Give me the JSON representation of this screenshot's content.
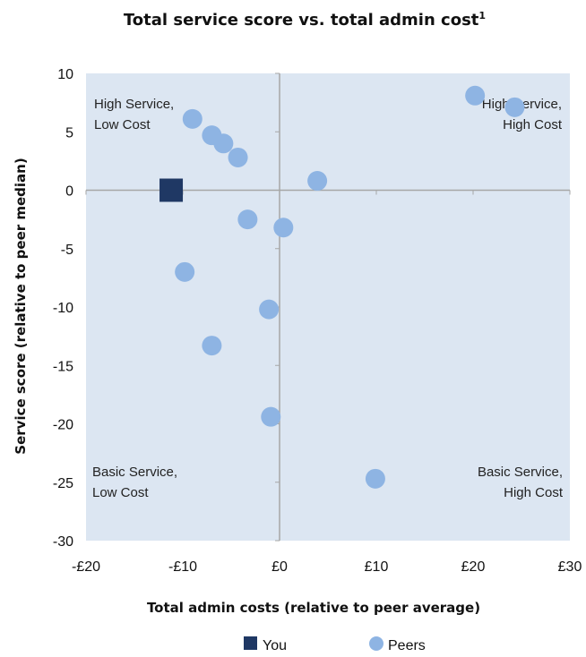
{
  "chart_data": {
    "type": "scatter",
    "title": "Total service score vs. total admin cost",
    "title_superscript": "1",
    "xlabel": "Total admin costs (relative to peer average)",
    "ylabel": "Service score (relative to peer median)",
    "xlim": [
      -20,
      30
    ],
    "ylim": [
      -30,
      10
    ],
    "x_ticks": [
      -20,
      -10,
      0,
      10,
      20,
      30
    ],
    "x_tick_labels": [
      "-£20",
      "-£10",
      "£0",
      "£10",
      "£20",
      "£30"
    ],
    "y_ticks": [
      10,
      5,
      0,
      -5,
      -10,
      -15,
      -20,
      -25,
      -30
    ],
    "y_tick_labels": [
      "10",
      "5",
      "0",
      "-5",
      "-10",
      "-15",
      "-20",
      "-25",
      "-30"
    ],
    "grid": false,
    "legend_position": "bottom-center",
    "plot_background": "#dce6f2",
    "series": [
      {
        "name": "You",
        "marker": "square",
        "color": "#1f3864",
        "points": [
          {
            "x": -11.2,
            "y": 0
          }
        ]
      },
      {
        "name": "Peers",
        "marker": "circle",
        "color": "#8eb4e3",
        "points": [
          {
            "x": -9.0,
            "y": 6.1
          },
          {
            "x": -7.0,
            "y": 4.7
          },
          {
            "x": -5.8,
            "y": 4.0
          },
          {
            "x": -4.3,
            "y": 2.8
          },
          {
            "x": 3.9,
            "y": 0.8
          },
          {
            "x": -3.3,
            "y": -2.5
          },
          {
            "x": 0.4,
            "y": -3.2
          },
          {
            "x": -9.8,
            "y": -7.0
          },
          {
            "x": -1.1,
            "y": -10.2
          },
          {
            "x": -7.0,
            "y": -13.3
          },
          {
            "x": -0.9,
            "y": -19.4
          },
          {
            "x": 9.9,
            "y": -24.7
          },
          {
            "x": 20.2,
            "y": 8.1
          },
          {
            "x": 24.3,
            "y": 7.1
          }
        ]
      }
    ],
    "quadrant_labels": {
      "top_left": [
        "High Service,",
        "Low Cost"
      ],
      "top_right": [
        "High Service,",
        "High Cost"
      ],
      "bottom_left": [
        "Basic Service,",
        "Low Cost"
      ],
      "bottom_right": [
        "Basic Service,",
        "High Cost"
      ]
    }
  }
}
